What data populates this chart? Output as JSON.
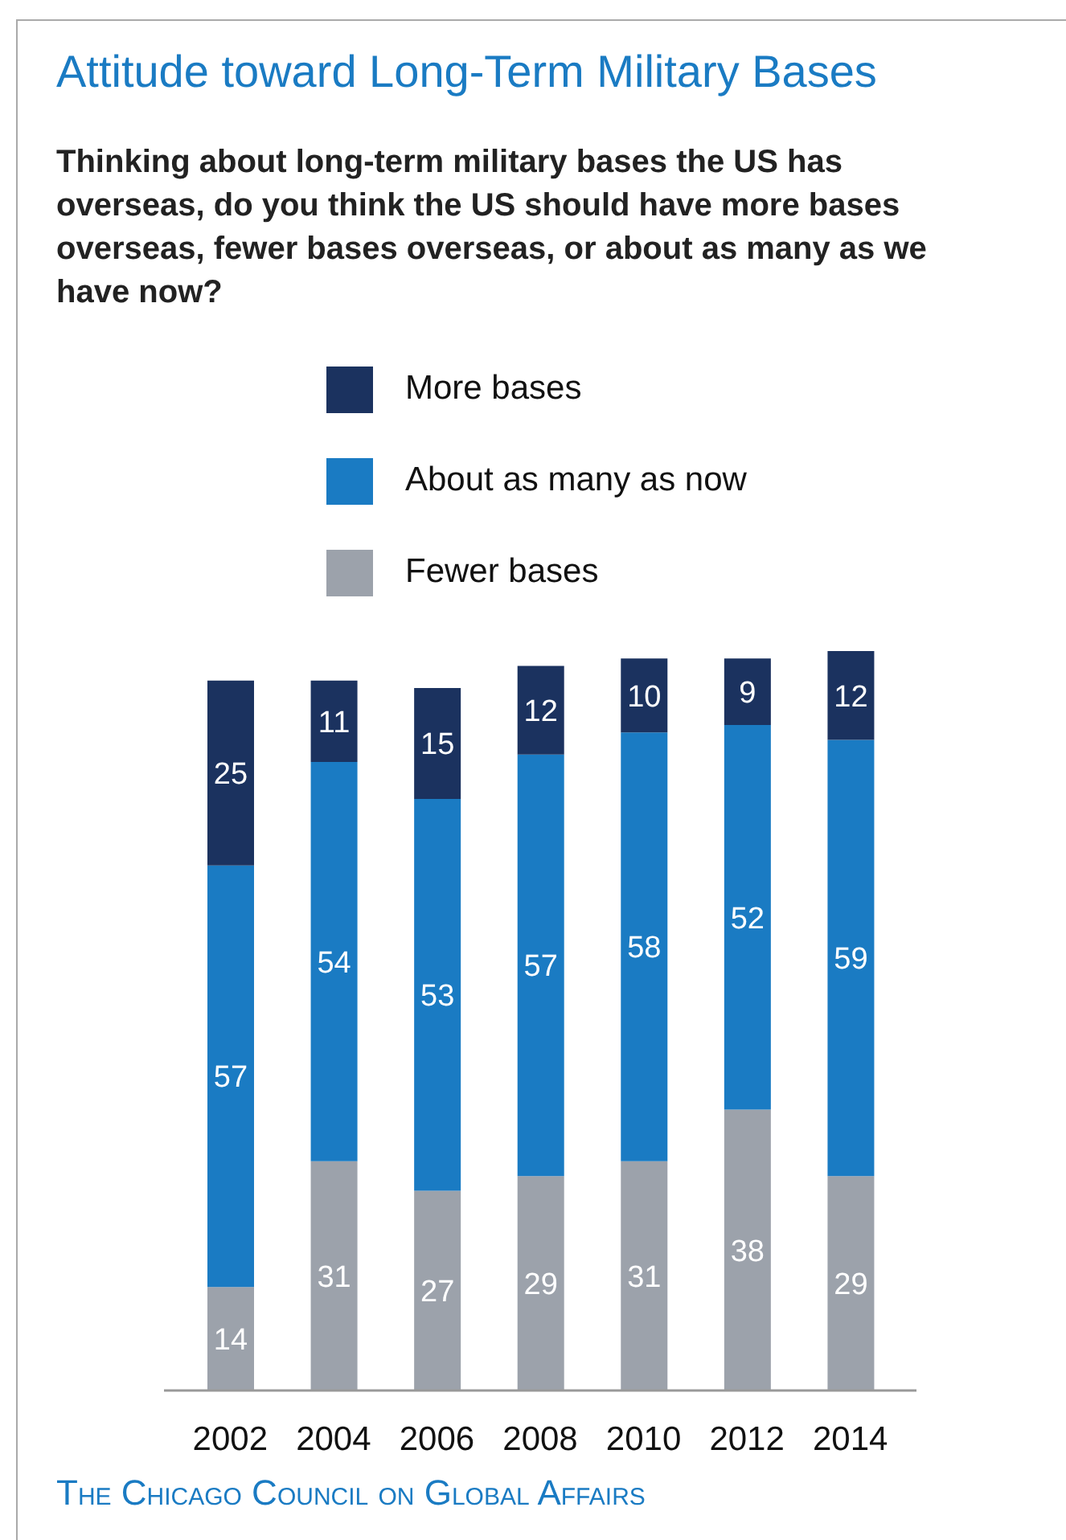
{
  "chart_data": {
    "type": "bar",
    "title": "Attitude toward Long-Term Military Bases",
    "subtitle": "Thinking about long-term military bases the US has overseas, do you think the US should have more bases overseas, fewer bases overseas, or about as many as we have now?",
    "categories": [
      "2002",
      "2004",
      "2006",
      "2008",
      "2010",
      "2012",
      "2014"
    ],
    "stacked": true,
    "series": [
      {
        "name": "Fewer bases",
        "color": "#9ca2ab",
        "values": [
          14,
          31,
          27,
          29,
          31,
          38,
          29
        ]
      },
      {
        "name": "About as many as now",
        "color": "#1a7bc3",
        "values": [
          57,
          54,
          53,
          57,
          58,
          52,
          59
        ]
      },
      {
        "name": "More bases",
        "color": "#1b325f",
        "values": [
          25,
          11,
          15,
          12,
          10,
          9,
          12
        ]
      }
    ],
    "data_labels": true,
    "legend": "top",
    "tick_labels": "x",
    "annotations": [
      "The Chicago Council on Global Affairs"
    ]
  }
}
